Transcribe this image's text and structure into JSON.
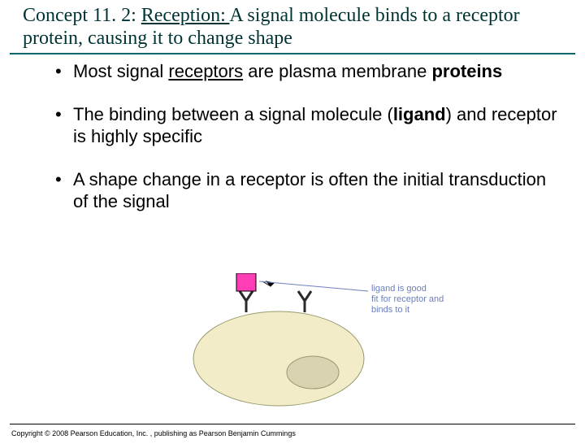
{
  "title": {
    "prefix": "Concept 11. 2: ",
    "underlined": "Reception: ",
    "rest": "A signal molecule binds to a receptor protein, causing it to change shape",
    "color": "#003333",
    "fontsize": 24
  },
  "divider_color": "#006666",
  "bullets": [
    {
      "parts": [
        {
          "t": "Most signal ",
          "style": ""
        },
        {
          "t": "receptors",
          "style": "u"
        },
        {
          "t": " are plasma membrane ",
          "style": ""
        },
        {
          "t": "proteins",
          "style": "b"
        }
      ]
    },
    {
      "parts": [
        {
          "t": "The binding between a signal molecule (",
          "style": ""
        },
        {
          "t": "ligand",
          "style": "b"
        },
        {
          "t": ") and receptor is highly specific",
          "style": ""
        }
      ]
    },
    {
      "parts": [
        {
          "t": "A shape change in a receptor is often the initial transduction of the signal",
          "style": ""
        }
      ]
    }
  ],
  "figure": {
    "cell_fill": "#f2edc8",
    "cell_stroke": "#9a9a6f",
    "nucleus_fill": "#d8d3b0",
    "nucleus_stroke": "#9a9a6f",
    "receptor_stroke": "#2a2a2a",
    "ligand_fill": "#ff3db5",
    "ligand_stroke": "#000000",
    "arrow_color": "#000000",
    "label_color": "#6c7fbf",
    "label_line1": "ligand is good",
    "label_line2": "fit for receptor and",
    "label_line3": "binds to it",
    "label_fontsize": 11
  },
  "copyright": "Copyright © 2008 Pearson Education, Inc. , publishing as Pearson Benjamin Cummings"
}
